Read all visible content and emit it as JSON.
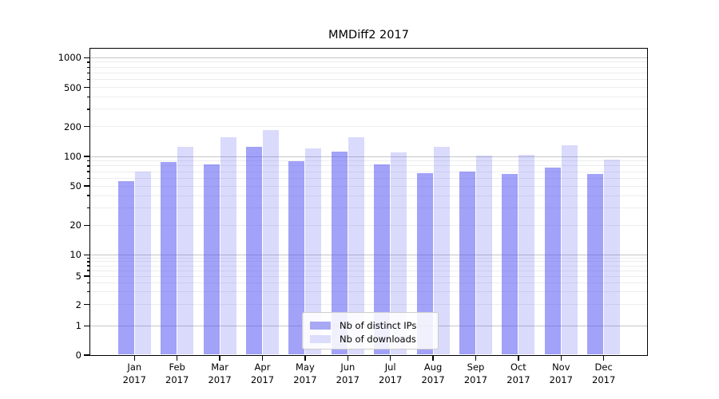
{
  "chart_data": {
    "type": "bar",
    "title": "MMDiff2 2017",
    "categories": [
      "Jan",
      "Feb",
      "Mar",
      "Apr",
      "May",
      "Jun",
      "Jul",
      "Aug",
      "Sep",
      "Oct",
      "Nov",
      "Dec"
    ],
    "x_year_suffix": "2017",
    "series": [
      {
        "name": "Nb of distinct IPs",
        "values": [
          56,
          88,
          83,
          124,
          90,
          112,
          83,
          67,
          70,
          66,
          77,
          66
        ]
      },
      {
        "name": "Nb of downloads",
        "values": [
          70,
          125,
          157,
          186,
          120,
          157,
          110,
          126,
          101,
          104,
          130,
          93
        ]
      }
    ],
    "yticks": [
      0,
      1,
      2,
      5,
      10,
      20,
      50,
      100,
      200,
      500,
      1000
    ],
    "yscale": "symlog",
    "ylim": [
      0,
      1230
    ],
    "grid": true,
    "legend_position": "lower center",
    "colors": {
      "distinct_ips": "#a8a8f4",
      "downloads": "#dcdcfb"
    }
  }
}
